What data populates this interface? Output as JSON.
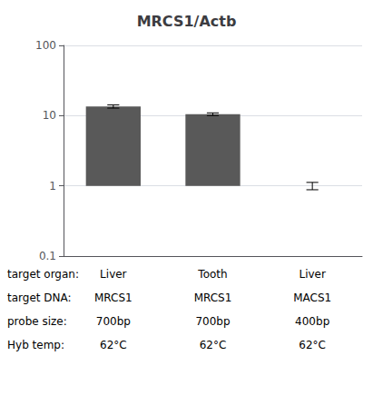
{
  "chart_data": {
    "type": "bar",
    "title": "MRCS1/Actb",
    "categories": [
      null,
      null,
      null
    ],
    "values": [
      13.5,
      10.5,
      1.0
    ],
    "errors": [
      0.7,
      0.45,
      0.12
    ],
    "color": "#595959",
    "log": "y",
    "ylim": [
      0.1,
      100
    ],
    "yticks": [
      0.1,
      1,
      10,
      100
    ],
    "grid": true,
    "tick_labels": "y",
    "annotations": [
      [
        "target organ:",
        "Liver",
        "Tooth",
        "Liver"
      ],
      [
        "target DNA:",
        "MRCS1",
        "MRCS1",
        "MACS1"
      ],
      [
        "probe size:",
        "700bp",
        "700bp",
        "400bp"
      ],
      [
        "Hyb temp:",
        "62°C",
        "62°C",
        "62°C"
      ]
    ]
  }
}
